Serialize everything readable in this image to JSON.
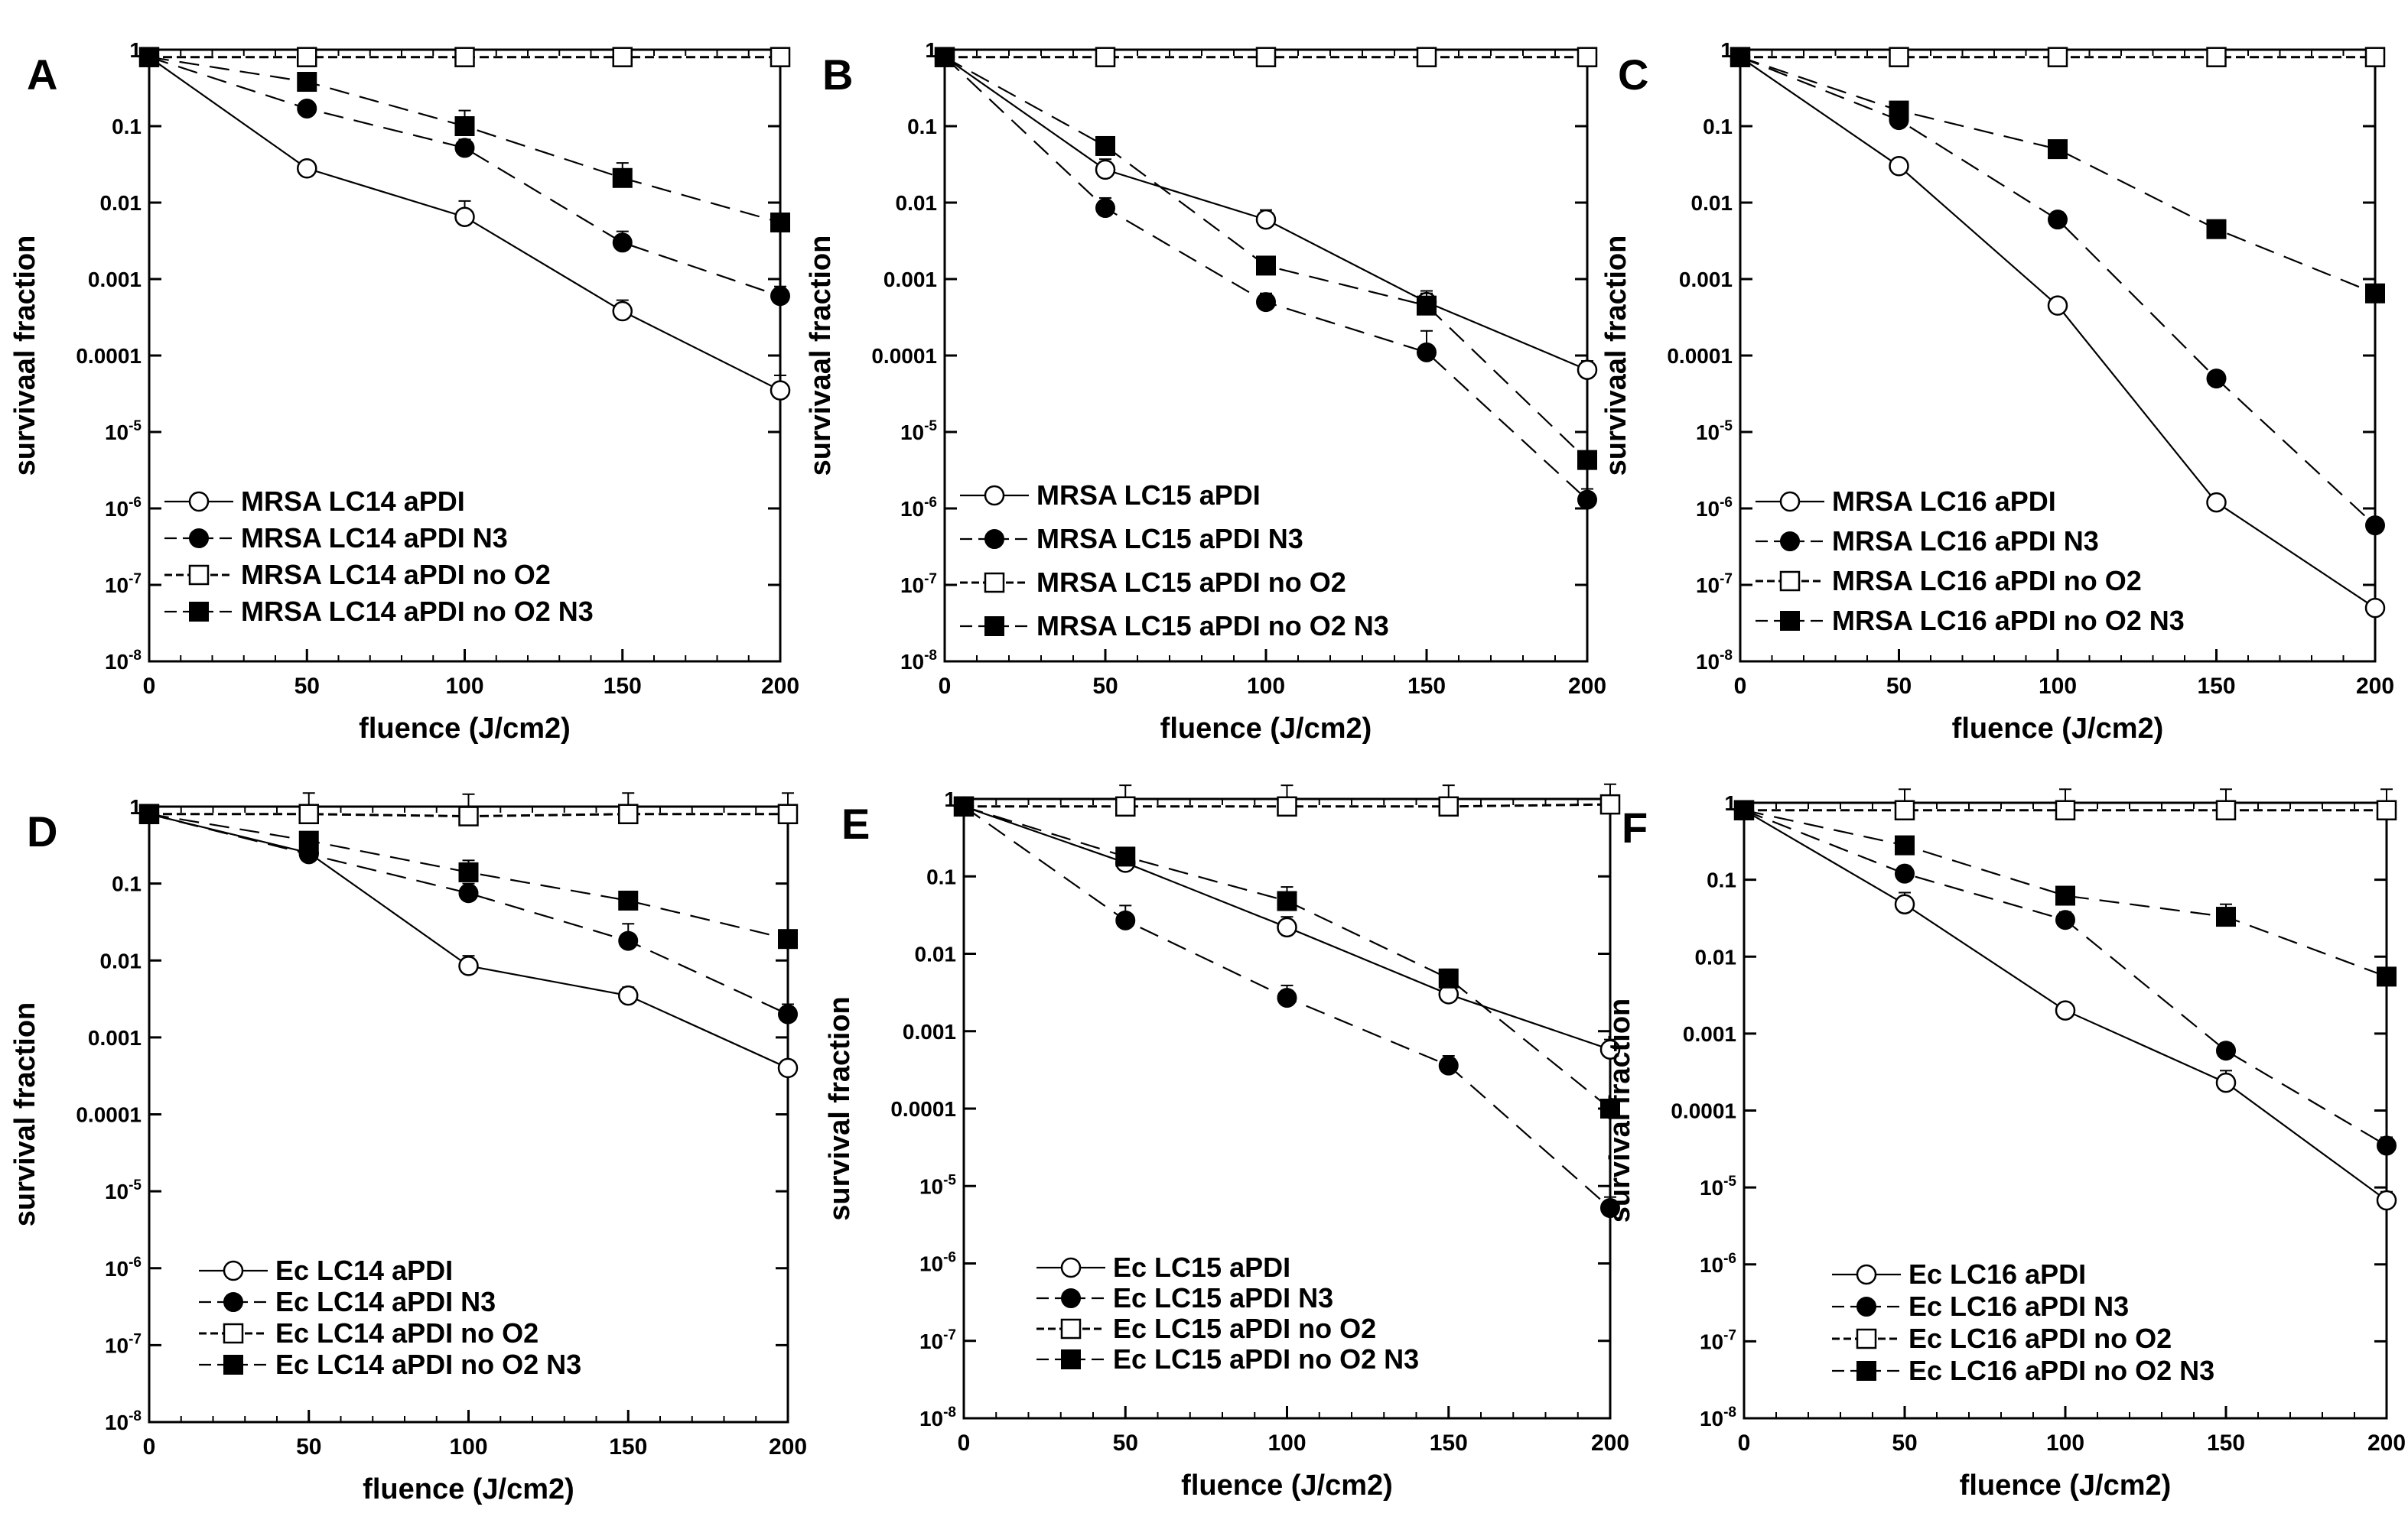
{
  "figure": {
    "ylabel_mrsa": "survivaal fraction",
    "ylabel_ec": "survival fraction"
  },
  "chart_data": [
    {
      "panel": "A",
      "type": "line",
      "xlabel": "fluence (J/cm2)",
      "ylabel": "survivaal fraction",
      "yscale": "log",
      "xlim": [
        0,
        200
      ],
      "ylim": [
        1e-08,
        1
      ],
      "x": [
        0,
        50,
        100,
        150,
        200
      ],
      "xticks": [
        "0",
        "50",
        "100",
        "150",
        "200"
      ],
      "yticks": [
        "1",
        "0.1",
        "0.01",
        "0.001",
        "0.0001",
        "10-5",
        "10-6",
        "10-7",
        "10-8"
      ],
      "legend_position": "lower-left",
      "series": [
        {
          "name": "MRSA LC14 aPDI",
          "values": [
            0.8,
            0.028,
            0.0065,
            0.00038,
            3.5e-05
          ],
          "errors": [
            0,
            0.006,
            0.004,
            0.00015,
            2e-05
          ],
          "marker": "open-circle",
          "line": "solid"
        },
        {
          "name": "MRSA LC14 aPDI N3",
          "values": [
            0.8,
            0.17,
            0.052,
            0.003,
            0.0006
          ],
          "errors": [
            0,
            0.04,
            0.015,
            0.0012,
            0.0002
          ],
          "marker": "filled-circle",
          "line": "dashed"
        },
        {
          "name": "MRSA LC14 aPDI no O2",
          "values": [
            0.8,
            0.8,
            0.8,
            0.8,
            0.8
          ],
          "errors": [
            0,
            0,
            0,
            0,
            0
          ],
          "marker": "open-square",
          "line": "dotted"
        },
        {
          "name": "MRSA LC14 aPDI no O2 N3",
          "values": [
            0.8,
            0.38,
            0.1,
            0.021,
            0.0055
          ],
          "errors": [
            0,
            0.1,
            0.06,
            0.012,
            0.001
          ],
          "marker": "filled-square",
          "line": "dashed"
        }
      ]
    },
    {
      "panel": "B",
      "type": "line",
      "xlabel": "fluence (J/cm2)",
      "ylabel": "survivaal fraction",
      "yscale": "log",
      "xlim": [
        0,
        200
      ],
      "ylim": [
        1e-08,
        1
      ],
      "x": [
        0,
        50,
        100,
        150,
        200
      ],
      "xticks": [
        "0",
        "50",
        "100",
        "150",
        "200"
      ],
      "yticks": [
        "1",
        "0.1",
        "0.01",
        "0.001",
        "0.0001",
        "10-5",
        "10-6",
        "10-7",
        "10-8"
      ],
      "legend_position": "lower-left",
      "series": [
        {
          "name": "MRSA LC15 aPDI",
          "values": [
            0.8,
            0.027,
            0.006,
            0.0005,
            6.5e-05
          ],
          "errors": [
            0,
            0.01,
            0.002,
            0.0002,
            2e-05
          ],
          "marker": "open-circle",
          "line": "solid"
        },
        {
          "name": "MRSA LC15 aPDI N3",
          "values": [
            0.8,
            0.0085,
            0.0005,
            0.00011,
            1.3e-06
          ],
          "errors": [
            0,
            0.003,
            0.00015,
            0.0001,
            5e-07
          ],
          "marker": "filled-circle",
          "line": "dashed"
        },
        {
          "name": "MRSA LC15 aPDI no O2",
          "values": [
            0.8,
            0.8,
            0.8,
            0.8,
            0.8
          ],
          "errors": [
            0,
            0,
            0,
            0,
            0
          ],
          "marker": "open-square",
          "line": "dotted"
        },
        {
          "name": "MRSA LC15 aPDI no O2 N3",
          "values": [
            0.8,
            0.055,
            0.0015,
            0.00045,
            4.3e-06
          ],
          "errors": [
            0,
            0.01,
            0.0004,
            0.0002,
            1e-06
          ],
          "marker": "filled-square",
          "line": "dashed"
        }
      ]
    },
    {
      "panel": "C",
      "type": "line",
      "xlabel": "fluence (J/cm2)",
      "ylabel": "survivaal fraction",
      "yscale": "log",
      "xlim": [
        0,
        200
      ],
      "ylim": [
        1e-08,
        1
      ],
      "x": [
        0,
        50,
        100,
        150,
        200
      ],
      "xticks": [
        "0",
        "50",
        "100",
        "150",
        "200"
      ],
      "yticks": [
        "1",
        "0.1",
        "0.01",
        "0.001",
        "0.0001",
        "10-5",
        "10-6",
        "10-7",
        "10-8"
      ],
      "legend_position": "lower-left",
      "series": [
        {
          "name": "MRSA LC16 aPDI",
          "values": [
            0.8,
            0.03,
            0.00045,
            1.2e-06,
            5e-08
          ],
          "errors": [
            0,
            0.006,
            0.0001,
            3e-07,
            1e-08
          ],
          "marker": "open-circle",
          "line": "solid"
        },
        {
          "name": "MRSA LC16 aPDI N3",
          "values": [
            0.8,
            0.12,
            0.006,
            5e-05,
            6e-07
          ],
          "errors": [
            0,
            0.03,
            0.0015,
            1e-05,
            1e-07
          ],
          "marker": "filled-circle",
          "line": "dashed"
        },
        {
          "name": "MRSA LC16 aPDI no O2",
          "values": [
            0.8,
            0.8,
            0.8,
            0.8,
            0.8
          ],
          "errors": [
            0,
            0,
            0,
            0,
            0
          ],
          "marker": "open-square",
          "line": "dotted"
        },
        {
          "name": "MRSA LC16 aPDI no O2 N3",
          "values": [
            0.8,
            0.16,
            0.05,
            0.0045,
            0.00065
          ],
          "errors": [
            0,
            0.04,
            0.01,
            0.001,
            0.0001
          ],
          "marker": "filled-square",
          "line": "dashed"
        }
      ]
    },
    {
      "panel": "D",
      "type": "line",
      "xlabel": "fluence (J/cm2)",
      "ylabel": "survival fraction",
      "yscale": "log",
      "xlim": [
        0,
        200
      ],
      "ylim": [
        1e-08,
        1
      ],
      "x": [
        0,
        50,
        100,
        150,
        200
      ],
      "xticks": [
        "0",
        "50",
        "100",
        "150",
        "200"
      ],
      "yticks": [
        "1",
        "0.1",
        "0.01",
        "0.001",
        "0.0001",
        "10-5",
        "10-6",
        "10-7",
        "10-8"
      ],
      "legend_position": "lower-left",
      "series": [
        {
          "name": "Ec LC14 aPDI",
          "values": [
            0.8,
            0.25,
            0.0085,
            0.0035,
            0.0004
          ],
          "errors": [
            0,
            0.06,
            0.003,
            0.001,
            0.0001
          ],
          "marker": "open-circle",
          "line": "solid"
        },
        {
          "name": "Ec LC14 aPDI N3",
          "values": [
            0.8,
            0.24,
            0.075,
            0.018,
            0.002
          ],
          "errors": [
            0,
            0.06,
            0.025,
            0.012,
            0.0007
          ],
          "marker": "filled-circle",
          "line": "dashed"
        },
        {
          "name": "Ec LC14 aPDI no O2",
          "values": [
            0.8,
            0.8,
            0.75,
            0.8,
            0.8
          ],
          "errors": [
            0,
            0.7,
            0.7,
            0.7,
            0.7
          ],
          "marker": "open-square",
          "line": "dotted"
        },
        {
          "name": "Ec LC14 aPDI no O2 N3",
          "values": [
            0.8,
            0.36,
            0.14,
            0.06,
            0.019
          ],
          "errors": [
            0,
            0.08,
            0.06,
            0.01,
            0.003
          ],
          "marker": "filled-square",
          "line": "dashed"
        }
      ]
    },
    {
      "panel": "E",
      "type": "line",
      "xlabel": "fluence (J/cm2)",
      "ylabel": "survival fraction",
      "yscale": "log",
      "xlim": [
        0,
        200
      ],
      "ylim": [
        1e-08,
        1
      ],
      "x": [
        0,
        50,
        100,
        150,
        200
      ],
      "xticks": [
        "0",
        "50",
        "100",
        "150",
        "200"
      ],
      "yticks": [
        "1",
        "0.1",
        "0.01",
        "0.001",
        "0.0001",
        "10-5",
        "10-6",
        "10-7",
        "10-8"
      ],
      "legend_position": "lower-left",
      "series": [
        {
          "name": "Ec LC15 aPDI",
          "values": [
            0.8,
            0.15,
            0.022,
            0.003,
            0.00058
          ],
          "errors": [
            0,
            0.03,
            0.008,
            0.001,
            0.0002
          ],
          "marker": "open-circle",
          "line": "solid"
        },
        {
          "name": "Ec LC15 aPDI N3",
          "values": [
            0.8,
            0.027,
            0.0027,
            0.00036,
            5.2e-06
          ],
          "errors": [
            0,
            0.015,
            0.0012,
            0.00012,
            2e-06
          ],
          "marker": "filled-circle",
          "line": "dashed"
        },
        {
          "name": "Ec LC15 aPDI no O2",
          "values": [
            0.8,
            0.8,
            0.8,
            0.8,
            0.85
          ],
          "errors": [
            0,
            0.7,
            0.7,
            0.7,
            0.7
          ],
          "marker": "open-square",
          "line": "dotted"
        },
        {
          "name": "Ec LC15 aPDI no O2 N3",
          "values": [
            0.8,
            0.18,
            0.048,
            0.0048,
            0.0001
          ],
          "errors": [
            0,
            0.03,
            0.025,
            0.0015,
            2e-05
          ],
          "marker": "filled-square",
          "line": "dashed"
        }
      ]
    },
    {
      "panel": "F",
      "type": "line",
      "xlabel": "fluence (J/cm2)",
      "ylabel": "survival fraction",
      "yscale": "log",
      "xlim": [
        0,
        200
      ],
      "ylim": [
        1e-08,
        1
      ],
      "x": [
        0,
        50,
        100,
        150,
        200
      ],
      "xticks": [
        "0",
        "50",
        "100",
        "150",
        "200"
      ],
      "yticks": [
        "1",
        "0.1",
        "0.01",
        "0.001",
        "0.0001",
        "10-5",
        "10-6",
        "10-7",
        "10-8"
      ],
      "legend_position": "lower-left",
      "series": [
        {
          "name": "Ec LC16 aPDI",
          "values": [
            0.8,
            0.048,
            0.002,
            0.00023,
            6.8e-06
          ],
          "errors": [
            0,
            0.02,
            0.0005,
            0.0001,
            2e-06
          ],
          "marker": "open-circle",
          "line": "solid"
        },
        {
          "name": "Ec LC16 aPDI N3",
          "values": [
            0.8,
            0.12,
            0.03,
            0.0006,
            3.5e-05
          ],
          "errors": [
            0,
            0.03,
            0.008,
            0.00015,
            1e-05
          ],
          "marker": "filled-circle",
          "line": "dashed"
        },
        {
          "name": "Ec LC16 aPDI no O2",
          "values": [
            0.8,
            0.8,
            0.8,
            0.8,
            0.8
          ],
          "errors": [
            0,
            0.7,
            0.7,
            0.7,
            0.7
          ],
          "marker": "open-square",
          "line": "dotted"
        },
        {
          "name": "Ec LC16 aPDI no O2 N3",
          "values": [
            0.8,
            0.28,
            0.062,
            0.033,
            0.0055
          ],
          "errors": [
            0,
            0.06,
            0.01,
            0.015,
            0.0015
          ],
          "marker": "filled-square",
          "line": "dashed"
        }
      ]
    }
  ]
}
